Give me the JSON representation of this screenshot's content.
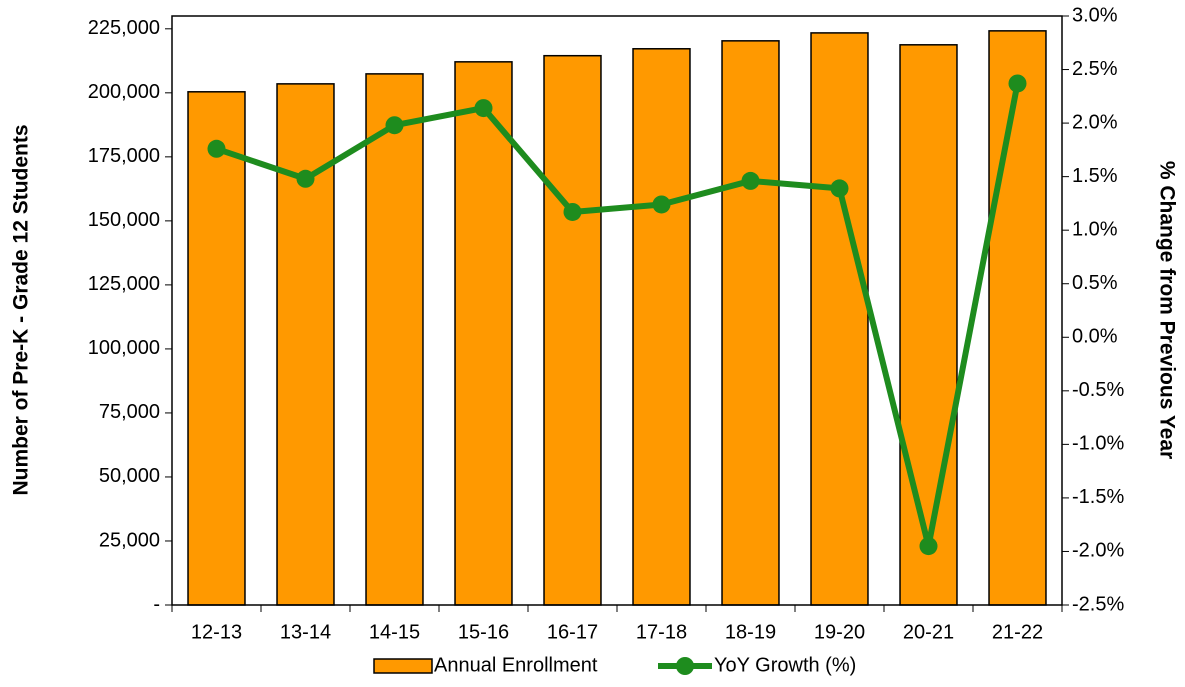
{
  "chart_data": {
    "type": "bar_line",
    "categories": [
      "12-13",
      "13-14",
      "14-15",
      "15-16",
      "16-17",
      "17-18",
      "18-19",
      "19-20",
      "20-21",
      "21-22"
    ],
    "series": [
      {
        "name": "Annual Enrollment",
        "type": "bar",
        "color": "#ff9900",
        "values": [
          200400,
          203500,
          207400,
          212100,
          214500,
          217200,
          220300,
          223400,
          218750,
          224200
        ]
      },
      {
        "name": "YoY Growth (%)",
        "type": "line",
        "axis": "y2",
        "color": "#1e8c1e",
        "values": [
          1.76,
          1.48,
          1.98,
          2.14,
          1.17,
          1.24,
          1.46,
          1.39,
          -1.95,
          2.37
        ]
      }
    ],
    "ylabel": "Number of Pre-K - Grade 12 Students",
    "y2label": "% Change from Previous Year",
    "ylim": [
      0,
      230000
    ],
    "yticks": [
      {
        "value": 0,
        "label": "-"
      },
      {
        "value": 25000,
        "label": "25,000"
      },
      {
        "value": 50000,
        "label": "50,000"
      },
      {
        "value": 75000,
        "label": "75,000"
      },
      {
        "value": 100000,
        "label": "100,000"
      },
      {
        "value": 125000,
        "label": "125,000"
      },
      {
        "value": 150000,
        "label": "150,000"
      },
      {
        "value": 175000,
        "label": "175,000"
      },
      {
        "value": 200000,
        "label": "200,000"
      },
      {
        "value": 225000,
        "label": "225,000"
      }
    ],
    "y2lim": [
      -2.5,
      3
    ],
    "y2ticks": [
      {
        "value": -2.5,
        "label": "-2.5%"
      },
      {
        "value": -2,
        "label": "-2.0%"
      },
      {
        "value": -1.5,
        "label": "-1.5%"
      },
      {
        "value": -1,
        "label": "-1.0%"
      },
      {
        "value": -0.5,
        "label": "-0.5%"
      },
      {
        "value": 0,
        "label": "0.0%"
      },
      {
        "value": 0.5,
        "label": "0.5%"
      },
      {
        "value": 1,
        "label": "1.0%"
      },
      {
        "value": 1.5,
        "label": "1.5%"
      },
      {
        "value": 2,
        "label": "2.0%"
      },
      {
        "value": 2.5,
        "label": "2.5%"
      },
      {
        "value": 3,
        "label": "3.0%"
      }
    ],
    "legend": "bottom"
  }
}
